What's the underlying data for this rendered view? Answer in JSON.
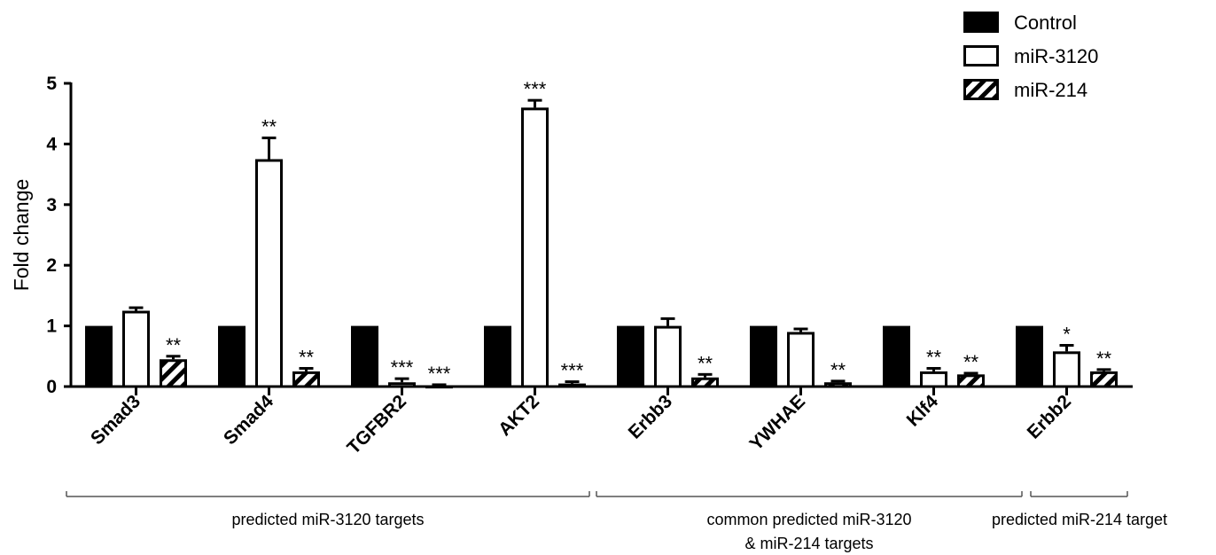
{
  "chart_data": {
    "type": "bar",
    "ylabel": "Fold change",
    "ylim": [
      0,
      5
    ],
    "yticks": [
      "0",
      "1",
      "2",
      "3",
      "4",
      "5"
    ],
    "grid": false,
    "legend_position": "top-right",
    "categories": [
      "Smad3",
      "Smad4",
      "TGFBR2",
      "AKT2",
      "Erbb3",
      "YWHAE",
      "Klf4",
      "Erbb2"
    ],
    "series": [
      {
        "name": "Control",
        "style": "solid",
        "color": "#000000",
        "values": [
          1.0,
          1.0,
          1.0,
          1.0,
          1.0,
          1.0,
          1.0,
          1.0
        ],
        "errors": [
          0,
          0,
          0,
          0,
          0,
          0,
          0,
          0
        ],
        "significance": [
          "",
          "",
          "",
          "",
          "",
          "",
          "",
          ""
        ]
      },
      {
        "name": "miR-3120",
        "style": "open",
        "color": "#ffffff",
        "values": [
          1.25,
          3.75,
          0.07,
          4.6,
          1.0,
          0.9,
          0.25,
          0.58
        ],
        "errors": [
          0.05,
          0.35,
          0.06,
          0.12,
          0.12,
          0.05,
          0.05,
          0.1
        ],
        "significance": [
          "",
          "**",
          "***",
          "***",
          "",
          "",
          "**",
          "*"
        ]
      },
      {
        "name": "miR-214",
        "style": "hatched",
        "color": "#000000",
        "values": [
          0.45,
          0.25,
          0.02,
          0.05,
          0.15,
          0.07,
          0.2,
          0.25
        ],
        "errors": [
          0.05,
          0.05,
          0.01,
          0.03,
          0.05,
          0.02,
          0.02,
          0.03
        ],
        "significance": [
          "**",
          "**",
          "***",
          "***",
          "**",
          "**",
          "**",
          "**"
        ]
      }
    ],
    "groups": [
      {
        "lines": [
          "predicted miR-3120 targets"
        ],
        "from": 0,
        "to": 3
      },
      {
        "lines": [
          "common predicted miR-3120",
          "& miR-214 targets"
        ],
        "from": 4,
        "to": 6
      },
      {
        "lines": [
          "predicted miR-214 target"
        ],
        "from": 7,
        "to": 7
      }
    ]
  }
}
